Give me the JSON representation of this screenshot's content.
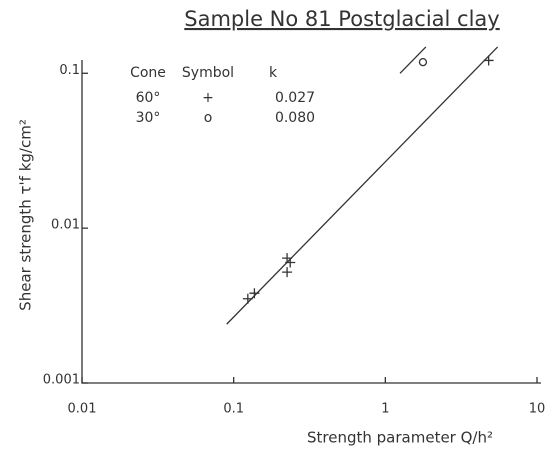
{
  "chart_data": {
    "type": "scatter",
    "title": "Sample No 81 Postglacial clay",
    "x_label": "Strength parameter Q/h²",
    "y_label": "Shear strength τ'f kg/cm²",
    "log_x": true,
    "log_y": true,
    "xlim": [
      0.01,
      10
    ],
    "ylim": [
      0.001,
      0.15
    ],
    "xticks": [
      0.01,
      0.1,
      1,
      10
    ],
    "yticks": [
      0.001,
      0.01,
      0.1
    ],
    "legend": {
      "header": [
        "Cone",
        "Symbol",
        "k"
      ],
      "rows": [
        [
          "60°",
          "+",
          "0.027"
        ],
        [
          "30°",
          "o",
          "0.080"
        ]
      ]
    },
    "series": [
      {
        "name": "60°",
        "marker": "plus",
        "color": "#333",
        "x": [
          0.225,
          0.236,
          0.225,
          0.124,
          0.137
        ],
        "values": [
          0.0064,
          0.006,
          0.0052,
          0.0035,
          0.0038
        ]
      },
      {
        "name": "60°",
        "marker": "plus",
        "color": "#333",
        "x": [
          4.8
        ],
        "values": [
          0.121
        ]
      },
      {
        "name": "30°",
        "marker": "circle",
        "color": "#333",
        "x": [
          1.77
        ],
        "values": [
          0.118
        ]
      }
    ],
    "lines": [
      {
        "name": "k = 0.027",
        "color": "#333",
        "x": [
          0.09,
          5.5
        ],
        "values": [
          0.0024,
          0.148
        ]
      },
      {
        "name": "k = 0.080",
        "color": "#333",
        "x": [
          1.25,
          1.85
        ],
        "values": [
          0.1,
          0.148
        ]
      }
    ]
  }
}
